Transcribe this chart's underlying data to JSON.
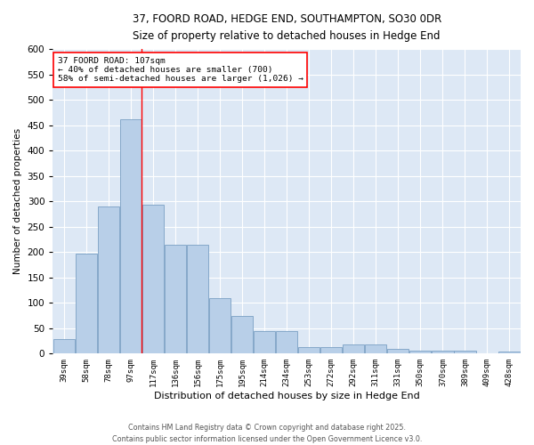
{
  "title_line1": "37, FOORD ROAD, HEDGE END, SOUTHAMPTON, SO30 0DR",
  "title_line2": "Size of property relative to detached houses in Hedge End",
  "xlabel": "Distribution of detached houses by size in Hedge End",
  "ylabel": "Number of detached properties",
  "categories": [
    "39sqm",
    "58sqm",
    "78sqm",
    "97sqm",
    "117sqm",
    "136sqm",
    "156sqm",
    "175sqm",
    "195sqm",
    "214sqm",
    "234sqm",
    "253sqm",
    "272sqm",
    "292sqm",
    "311sqm",
    "331sqm",
    "350sqm",
    "370sqm",
    "389sqm",
    "409sqm",
    "428sqm"
  ],
  "values": [
    28,
    197,
    290,
    462,
    293,
    215,
    215,
    110,
    75,
    45,
    45,
    12,
    12,
    18,
    18,
    9,
    5,
    5,
    5,
    0,
    4
  ],
  "bar_color": "#b8cfe8",
  "bar_edge_color": "#7aa0c4",
  "background_color": "#dde8f5",
  "grid_color": "#ffffff",
  "annotation_line1": "37 FOORD ROAD: 107sqm",
  "annotation_line2": "← 40% of detached houses are smaller (700)",
  "annotation_line3": "58% of semi-detached houses are larger (1,026) →",
  "red_line_x": 3.5,
  "ylim": [
    0,
    600
  ],
  "yticks": [
    0,
    50,
    100,
    150,
    200,
    250,
    300,
    350,
    400,
    450,
    500,
    550,
    600
  ],
  "footer_line1": "Contains HM Land Registry data © Crown copyright and database right 2025.",
  "footer_line2": "Contains public sector information licensed under the Open Government Licence v3.0.",
  "fig_width": 6.0,
  "fig_height": 5.0,
  "fig_dpi": 100
}
